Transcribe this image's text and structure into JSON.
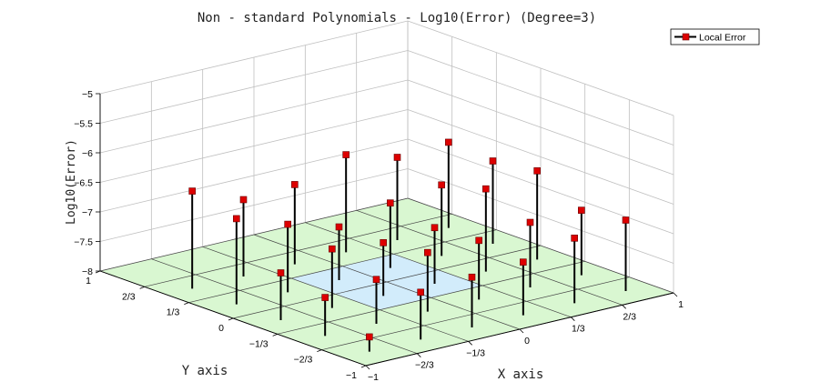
{
  "chart_data": {
    "type": "3d-stem",
    "title": "Non - standard Polynomials - Log10(Error) (Degree=3)",
    "xlabel": "X axis",
    "ylabel": "Y axis",
    "zlabel": "Log10(Error)",
    "xlim": [
      -1,
      1
    ],
    "ylim": [
      -1,
      1
    ],
    "zlim": [
      -8,
      -5
    ],
    "x_ticks": [
      {
        "value": -1,
        "label": "−1"
      },
      {
        "value": -0.6667,
        "label": "−2/3"
      },
      {
        "value": -0.3333,
        "label": "−1/3"
      },
      {
        "value": 0,
        "label": "0"
      },
      {
        "value": 0.3333,
        "label": "1/3"
      },
      {
        "value": 0.6667,
        "label": "2/3"
      },
      {
        "value": 1,
        "label": "1"
      }
    ],
    "y_ticks": [
      {
        "value": -1,
        "label": "−1"
      },
      {
        "value": -0.6667,
        "label": "−2/3"
      },
      {
        "value": -0.3333,
        "label": "−1/3"
      },
      {
        "value": 0,
        "label": "0"
      },
      {
        "value": 0.3333,
        "label": "1/3"
      },
      {
        "value": 0.6667,
        "label": "2/3"
      },
      {
        "value": 1,
        "label": "1"
      }
    ],
    "z_ticks": [
      {
        "value": -8,
        "label": "−8"
      },
      {
        "value": -7.5,
        "label": "−7.5"
      },
      {
        "value": -7,
        "label": "−7"
      },
      {
        "value": -6.5,
        "label": "−6.5"
      },
      {
        "value": -6,
        "label": "−6"
      },
      {
        "value": -5.5,
        "label": "−5.5"
      },
      {
        "value": -5,
        "label": "−5"
      }
    ],
    "grid": true,
    "legend": {
      "entries": [
        "Local Error"
      ],
      "placement": "top-right"
    },
    "colors": {
      "marker": "#dd0000",
      "stem": "#000000",
      "floor_outer": "#d9f7d1",
      "floor_inner": "#d2ecfb",
      "grid": "#bfbfbf"
    },
    "series": [
      {
        "name": "Local Error",
        "points": [
          {
            "x": -0.8333,
            "y": -0.8333,
            "z": -7.75
          },
          {
            "x": -0.5,
            "y": -0.8333,
            "z": -7.2
          },
          {
            "x": -0.1667,
            "y": -0.8333,
            "z": -7.15
          },
          {
            "x": 0.1667,
            "y": -0.8333,
            "z": -7.1
          },
          {
            "x": 0.5,
            "y": -0.8333,
            "z": -6.9
          },
          {
            "x": 0.8333,
            "y": -0.8333,
            "z": -6.8
          },
          {
            "x": -0.8333,
            "y": -0.5,
            "z": -7.35
          },
          {
            "x": -0.5,
            "y": -0.5,
            "z": -7.25
          },
          {
            "x": -0.1667,
            "y": -0.5,
            "z": -7.0
          },
          {
            "x": 0.1667,
            "y": -0.5,
            "z": -7.0
          },
          {
            "x": 0.5,
            "y": -0.5,
            "z": -6.9
          },
          {
            "x": 0.8333,
            "y": -0.5,
            "z": -6.9
          },
          {
            "x": -0.8333,
            "y": -0.1667,
            "z": -7.2
          },
          {
            "x": -0.5,
            "y": -0.1667,
            "z": -7.0
          },
          {
            "x": -0.1667,
            "y": -0.1667,
            "z": -7.1
          },
          {
            "x": 0.1667,
            "y": -0.1667,
            "z": -7.05
          },
          {
            "x": 0.5,
            "y": -0.1667,
            "z": -6.6
          },
          {
            "x": 0.8333,
            "y": -0.1667,
            "z": -6.5
          },
          {
            "x": -0.8333,
            "y": 0.1667,
            "z": -6.55
          },
          {
            "x": -0.5,
            "y": 0.1667,
            "z": -6.85
          },
          {
            "x": -0.1667,
            "y": 0.1667,
            "z": -7.1
          },
          {
            "x": 0.1667,
            "y": 0.1667,
            "z": -6.9
          },
          {
            "x": 0.5,
            "y": 0.1667,
            "z": -6.8
          },
          {
            "x": 0.8333,
            "y": 0.1667,
            "z": -6.6
          },
          {
            "x": -0.8333,
            "y": 0.5,
            "z": -6.35
          },
          {
            "x": -0.5,
            "y": 0.5,
            "z": -6.7
          },
          {
            "x": -0.1667,
            "y": 0.5,
            "z": -6.65
          },
          {
            "x": 0.1667,
            "y": 0.5,
            "z": -6.35
          },
          {
            "x": 0.5,
            "y": 0.5,
            "z": -6.6
          },
          {
            "x": 0.8333,
            "y": 0.5,
            "z": -6.55
          }
        ]
      }
    ]
  }
}
